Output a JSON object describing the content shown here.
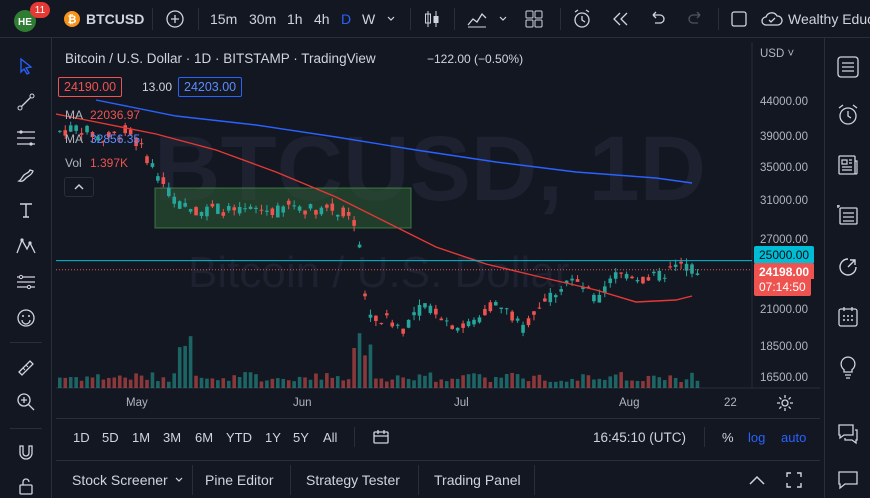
{
  "topbar": {
    "badge_count": "11",
    "symbol": "BTCUSD",
    "intervals": [
      "15m",
      "30m",
      "1h",
      "4h",
      "D",
      "W"
    ],
    "active_interval": "D",
    "brand": "Wealthy Educ"
  },
  "chart": {
    "title": "Bitcoin / U.S. Dollar · 1D · BITSTAMP · TradingView",
    "change": "−122.00 (−0.50%)",
    "sell_price": "24190.00",
    "spread": "13.00",
    "buy_price": "24203.00",
    "ma1_label": "MA",
    "ma1_value": "22036.97",
    "ma2_label": "MA",
    "ma2_value": "32856.35",
    "vol_label": "Vol",
    "vol_value": "1.397K",
    "watermark_big": "BTCUSD, 1D",
    "watermark_small": "Bitcoin / U.S. Dollar",
    "currency": "USD",
    "price_ticks": [
      "44000.00",
      "39000.00",
      "35000.00",
      "31000.00",
      "27000.00",
      "21000.00",
      "18500.00",
      "16500.00"
    ],
    "line_label": "25000.00",
    "last_price": "24198.00",
    "countdown": "07:14:50",
    "time_ticks": [
      "May",
      "Jun",
      "Jul",
      "Aug",
      "22"
    ]
  },
  "colors": {
    "background": "#131722",
    "up": "#26a69a",
    "down": "#ef5350",
    "ma_fast": "#e53935",
    "ma_slow": "#2962ff",
    "hline": "#00bcd4"
  },
  "bottombar": {
    "ranges": [
      "1D",
      "5D",
      "1M",
      "3M",
      "6M",
      "YTD",
      "1Y",
      "5Y",
      "All"
    ],
    "clock": "16:45:10 (UTC)",
    "percent": "%",
    "log": "log",
    "auto": "auto"
  },
  "tabs": [
    "Stock Screener",
    "Pine Editor",
    "Strategy Tester",
    "Trading Panel"
  ],
  "icons": {
    "left": [
      "cursor-icon",
      "trend-line-icon",
      "fib-icon",
      "brush-icon",
      "text-icon",
      "pattern-icon",
      "measure-icon",
      "emoji-icon",
      "ruler-icon",
      "zoom-icon",
      "magnet-icon",
      "lock-icon"
    ],
    "right": [
      "watchlist-icon",
      "alert-icon",
      "news-icon",
      "data-window-icon",
      "hotlist-icon",
      "calendar-icon",
      "ideas-icon",
      "chat-icon",
      "notifications-icon"
    ]
  }
}
